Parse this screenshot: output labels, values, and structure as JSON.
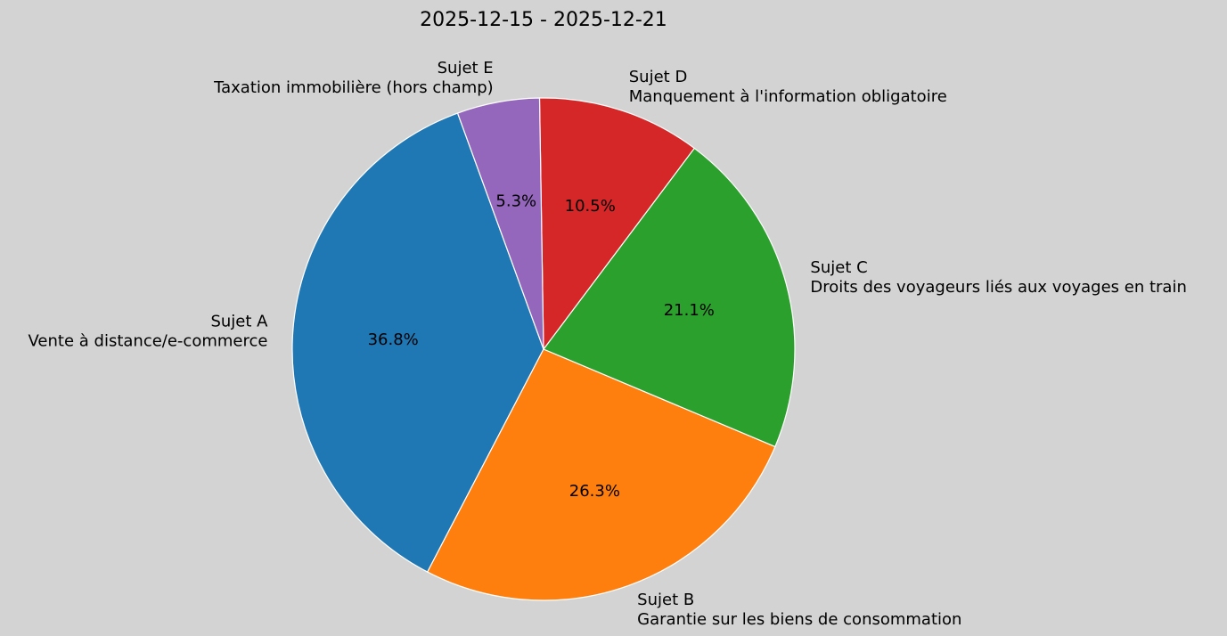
{
  "chart_data": {
    "type": "pie",
    "title": "2025-12-15 - 2025-12-21",
    "start_angle_deg": 110,
    "counterclockwise": true,
    "slices": [
      {
        "name": "Sujet A",
        "label": "Vente à distance/e-commerce",
        "value": 36.8,
        "pct_label": "36.8%",
        "color": "#1f77b4"
      },
      {
        "name": "Sujet B",
        "label": "Garantie sur les biens de consommation",
        "value": 26.3,
        "pct_label": "26.3%",
        "color": "#ff7f0e"
      },
      {
        "name": "Sujet C",
        "label": "Droits des voyageurs liés aux voyages en train",
        "value": 21.1,
        "pct_label": "21.1%",
        "color": "#2ca02c"
      },
      {
        "name": "Sujet D",
        "label": "Manquement à l'information obligatoire",
        "value": 10.5,
        "pct_label": "10.5%",
        "color": "#d62728"
      },
      {
        "name": "Sujet E",
        "label": "Taxation immobilière (hors champ)",
        "value": 5.3,
        "pct_label": "5.3%",
        "color": "#9467bd"
      }
    ],
    "background": "#d3d3d3"
  }
}
